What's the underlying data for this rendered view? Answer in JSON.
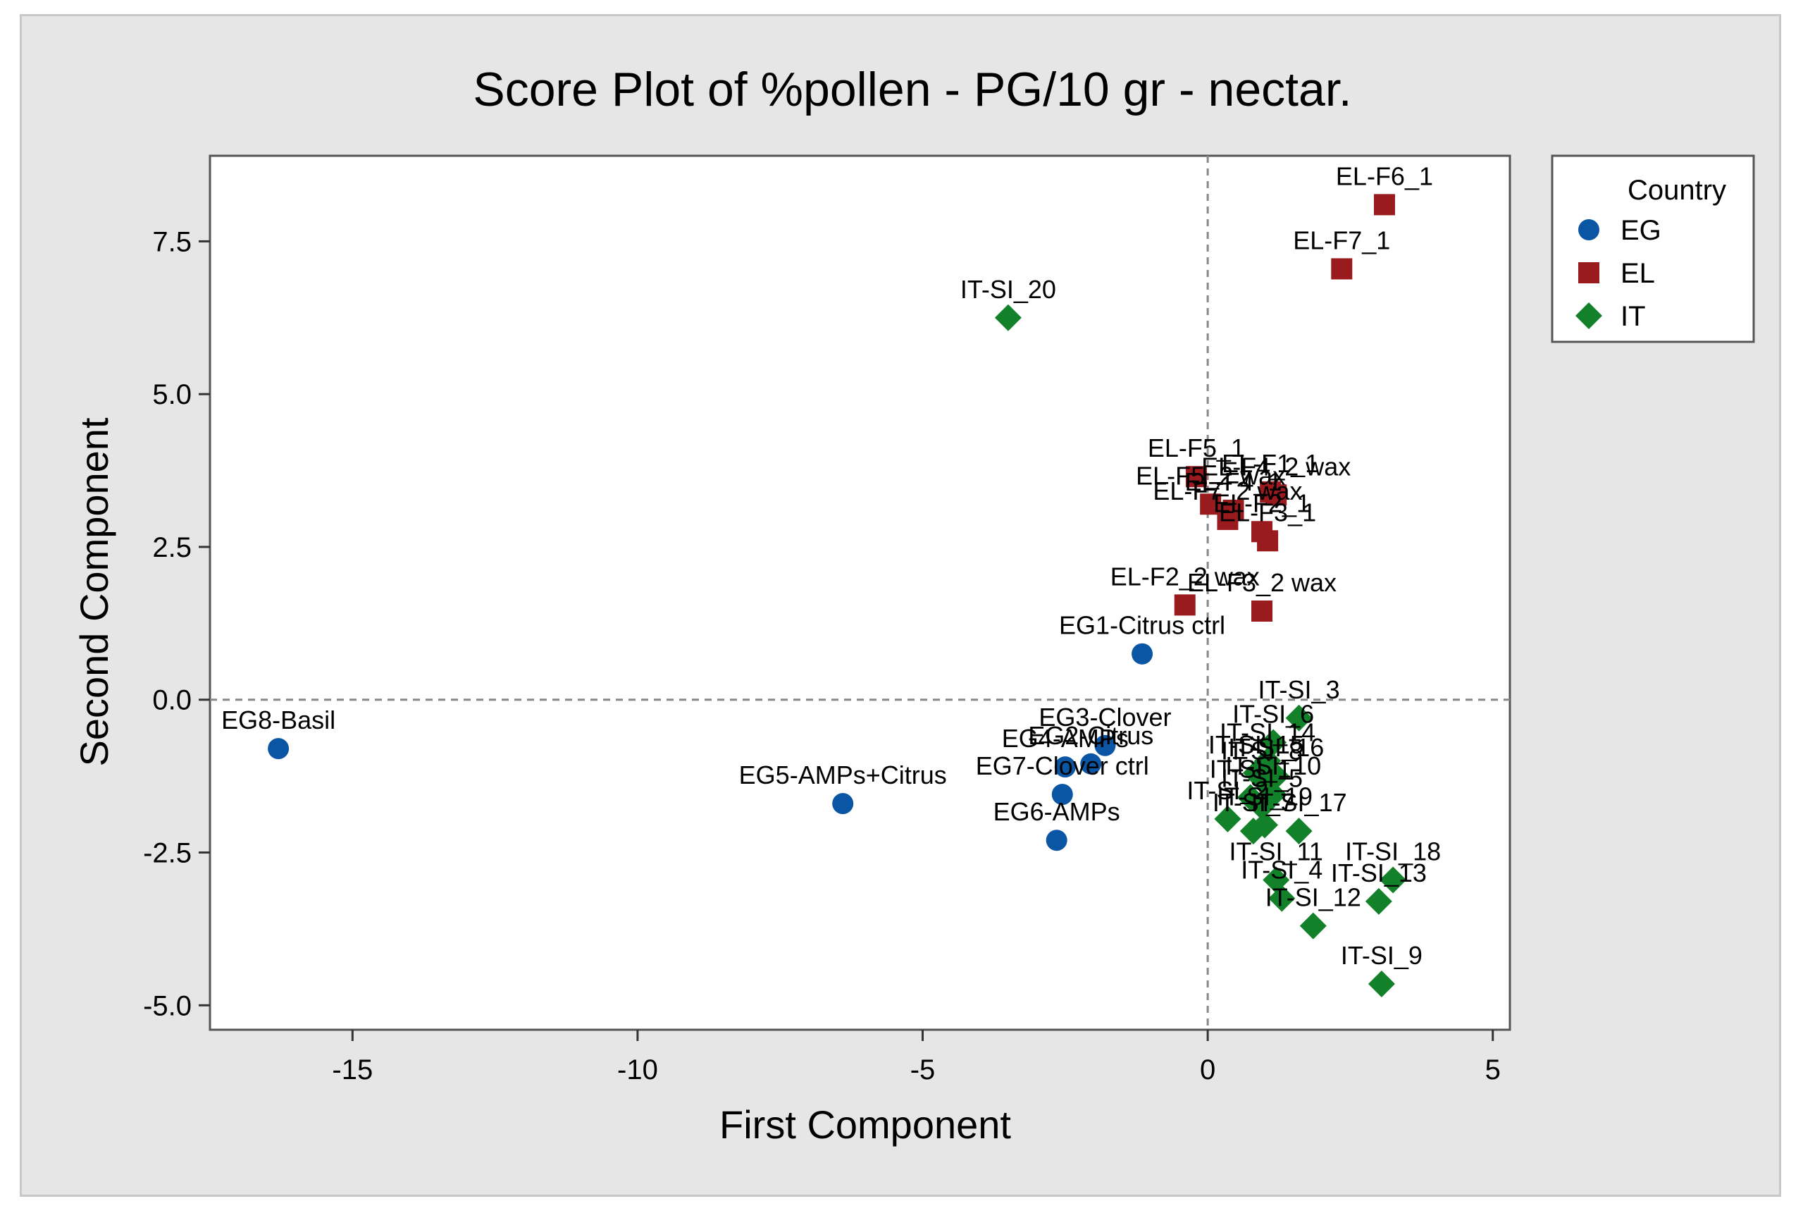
{
  "chart_data": {
    "type": "scatter",
    "title": "Score Plot of %pollen - PG/10 gr - nectar.",
    "xlabel": "First Component",
    "ylabel": "Second Component",
    "xlim": [
      -17.5,
      5.3
    ],
    "ylim": [
      -5.4,
      8.9
    ],
    "xticks": [
      -15,
      -10,
      -5,
      0,
      5
    ],
    "xtick_labels": [
      "-15",
      "-10",
      "-5",
      "0",
      "5"
    ],
    "yticks": [
      -5.0,
      -2.5,
      0.0,
      2.5,
      5.0,
      7.5
    ],
    "ytick_labels": [
      "-5.0",
      "-2.5",
      "0.0",
      "2.5",
      "5.0",
      "7.5"
    ],
    "reference_lines": {
      "x": 0,
      "y": 0
    },
    "legend": {
      "title": "Country",
      "position": "right",
      "entries": [
        {
          "name": "EG",
          "color": "#0b56a4",
          "marker": "circle"
        },
        {
          "name": "EL",
          "color": "#9a1b1e",
          "marker": "square"
        },
        {
          "name": "IT",
          "color": "#12812a",
          "marker": "diamond"
        }
      ]
    },
    "series": [
      {
        "name": "EG",
        "points": [
          {
            "label": "EG8-Basil",
            "x": -16.3,
            "y": -0.8
          },
          {
            "label": "EG5-AMPs+Citrus",
            "x": -6.4,
            "y": -1.7
          },
          {
            "label": "EG6-AMPs",
            "x": -2.65,
            "y": -2.3
          },
          {
            "label": "EG1-Citrus ctrl",
            "x": -1.15,
            "y": 0.75
          },
          {
            "label": "EG3-Clover",
            "x": -1.8,
            "y": -0.75
          },
          {
            "label": "EG4-AMPs",
            "x": -2.5,
            "y": -1.1
          },
          {
            "label": "EG2-Citrus",
            "x": -2.05,
            "y": -1.05
          },
          {
            "label": "EG7-Clover ctrl",
            "x": -2.55,
            "y": -1.55
          }
        ]
      },
      {
        "name": "EL",
        "points": [
          {
            "label": "EL-F6_1",
            "x": 3.1,
            "y": 8.1
          },
          {
            "label": "EL-F7_1",
            "x": 2.35,
            "y": 7.05
          },
          {
            "label": "EL-F5_1",
            "x": -0.2,
            "y": 3.65
          },
          {
            "label": "EL-F1_1",
            "x": 1.1,
            "y": 3.4
          },
          {
            "label": "EL-F4_2 wax",
            "x": 1.2,
            "y": 3.35
          },
          {
            "label": "EL-F5_2 wax",
            "x": 0.05,
            "y": 3.2
          },
          {
            "label": "EL-F4_1",
            "x": 0.45,
            "y": 3.1
          },
          {
            "label": "EL-F7_2 wax",
            "x": 0.35,
            "y": 2.95
          },
          {
            "label": "EL-F2_1",
            "x": 0.95,
            "y": 2.75
          },
          {
            "label": "EL-F3_1",
            "x": 1.05,
            "y": 2.6
          },
          {
            "label": "EL-F2_2 wax",
            "x": -0.4,
            "y": 1.55
          },
          {
            "label": "EL-F3_2 wax",
            "x": 0.95,
            "y": 1.45
          }
        ]
      },
      {
        "name": "IT",
        "points": [
          {
            "label": "IT-SI_20",
            "x": -3.5,
            "y": 6.25
          },
          {
            "label": "IT-SI_3",
            "x": 1.6,
            "y": -0.3
          },
          {
            "label": "IT-SI_6",
            "x": 1.15,
            "y": -0.7
          },
          {
            "label": "IT-SI_14",
            "x": 1.05,
            "y": -1.0
          },
          {
            "label": "IT-SI_15",
            "x": 0.85,
            "y": -1.2
          },
          {
            "label": "IT-SI_16",
            "x": 1.2,
            "y": -1.25
          },
          {
            "label": "IT-SI_8",
            "x": 0.95,
            "y": -1.3
          },
          {
            "label": "IT-SI_10",
            "x": 1.15,
            "y": -1.55
          },
          {
            "label": "IT-SI_1",
            "x": 0.75,
            "y": -1.6
          },
          {
            "label": "IT-SI_5",
            "x": 0.95,
            "y": -1.75
          },
          {
            "label": "IT-SI_17",
            "x": 1.6,
            "y": -2.15
          },
          {
            "label": "IT-SI_2",
            "x": 0.35,
            "y": -1.95
          },
          {
            "label": "IT-SI_7",
            "x": 0.8,
            "y": -2.15
          },
          {
            "label": "IT-SI_19",
            "x": 1.0,
            "y": -2.05
          },
          {
            "label": "IT-SI_11",
            "x": 1.2,
            "y": -2.95
          },
          {
            "label": "IT-SI_4",
            "x": 1.3,
            "y": -3.25
          },
          {
            "label": "IT-SI_18",
            "x": 3.25,
            "y": -2.95
          },
          {
            "label": "IT-SI_13",
            "x": 3.0,
            "y": -3.3
          },
          {
            "label": "IT-SI_12",
            "x": 1.85,
            "y": -3.7
          },
          {
            "label": "IT-SI_9",
            "x": 3.05,
            "y": -4.65
          }
        ]
      }
    ]
  }
}
